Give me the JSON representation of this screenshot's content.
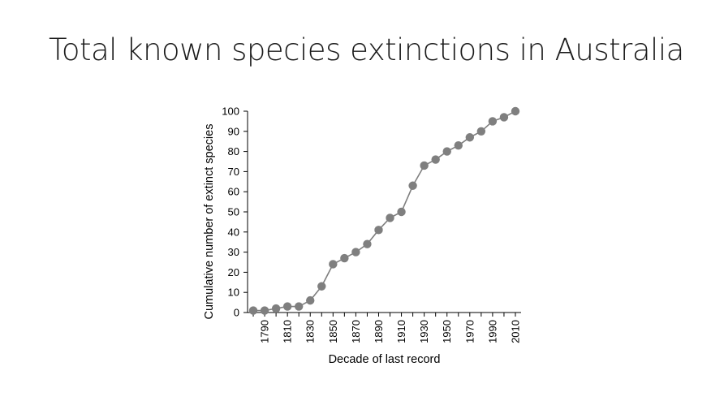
{
  "slide": {
    "title": "Total known species extinctions in Australia"
  },
  "chart_data": {
    "type": "line",
    "title": "",
    "xlabel": "Decade of last record",
    "ylabel": "Cumulative number of extinct species",
    "x": [
      1780,
      1790,
      1800,
      1810,
      1820,
      1830,
      1840,
      1850,
      1860,
      1870,
      1880,
      1890,
      1900,
      1910,
      1920,
      1930,
      1940,
      1950,
      1960,
      1970,
      1980,
      1990,
      2000,
      2010
    ],
    "x_tick_labels": [
      "1790",
      "1810",
      "1830",
      "1850",
      "1870",
      "1890",
      "1910",
      "1930",
      "1950",
      "1970",
      "1990",
      "2010"
    ],
    "y_ticks": [
      0,
      10,
      20,
      30,
      40,
      50,
      60,
      70,
      80,
      90,
      100
    ],
    "xlim": [
      1775,
      2015
    ],
    "ylim": [
      0,
      100
    ],
    "series": [
      {
        "values": [
          1,
          1,
          2,
          3,
          3,
          6,
          13,
          24,
          27,
          30,
          34,
          41,
          47,
          50,
          63,
          73,
          76,
          80,
          83,
          87,
          90,
          95,
          97,
          100
        ]
      }
    ],
    "grid": false,
    "legend": "none",
    "colors": {
      "marker": "#7f7f7f",
      "line": "#7f7f7f",
      "axis": "#000000",
      "text": "#000000"
    }
  }
}
